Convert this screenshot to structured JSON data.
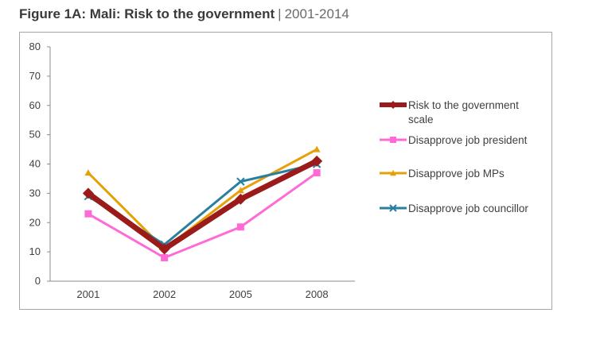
{
  "figure": {
    "title_main": "Figure 1A: Mali: Risk to the government",
    "separator": "|",
    "title_years": "2001-2014"
  },
  "chart_data": {
    "type": "line",
    "categories": [
      "2001",
      "2002",
      "2005",
      "2008"
    ],
    "ylim": [
      0,
      80
    ],
    "yticks": [
      0,
      10,
      20,
      30,
      40,
      50,
      60,
      70,
      80
    ],
    "grid": false,
    "legend_position": "right",
    "series": [
      {
        "name": "Risk to the government scale",
        "values": [
          30,
          11,
          28,
          41
        ],
        "color": "#9b1b1b",
        "marker": "diamond",
        "thick": true
      },
      {
        "name": "Disapprove job president",
        "values": [
          23,
          8,
          18.5,
          37
        ],
        "color": "#ff6ad5",
        "marker": "square",
        "thick": false
      },
      {
        "name": "Disapprove job MPs",
        "values": [
          37,
          11,
          31,
          45
        ],
        "color": "#e6a10a",
        "marker": "triangle",
        "thick": false
      },
      {
        "name": "Disapprove job councillor",
        "values": [
          29,
          12.5,
          34,
          40
        ],
        "color": "#2a7fa0",
        "marker": "x",
        "thick": false
      }
    ]
  }
}
